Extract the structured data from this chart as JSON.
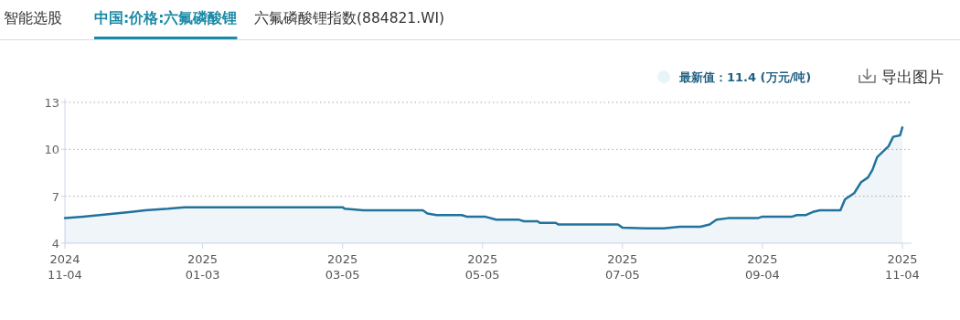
{
  "chart_data": {
    "type": "area",
    "annotations": [
      "智能选股",
      "中国:价格:六氟磷酸锂",
      "六氟磷酸锂指数(884821.WI)",
      "最新值：11.4 (万元/吨)",
      "导出图片"
    ],
    "x": [
      "2024-11-04",
      "2024-11-12",
      "2024-11-26",
      "2024-12-03",
      "2024-12-09",
      "2024-12-19",
      "2024-12-26",
      "2025-03-05",
      "2025-03-06",
      "2025-03-14",
      "2025-04-09",
      "2025-04-11",
      "2025-04-15",
      "2025-04-26",
      "2025-04-28",
      "2025-05-06",
      "2025-05-11",
      "2025-05-21",
      "2025-05-23",
      "2025-05-29",
      "2025-05-30",
      "2025-06-06",
      "2025-06-07",
      "2025-07-03",
      "2025-07-05",
      "2025-07-15",
      "2025-07-23",
      "2025-07-30",
      "2025-08-08",
      "2025-08-12",
      "2025-08-15",
      "2025-08-20",
      "2025-09-02",
      "2025-09-04",
      "2025-09-17",
      "2025-09-19",
      "2025-09-23",
      "2025-09-26",
      "2025-09-29",
      "2025-10-08",
      "2025-10-10",
      "2025-10-14",
      "2025-10-17",
      "2025-10-20",
      "2025-10-22",
      "2025-10-24",
      "2025-10-29",
      "2025-10-31",
      "2025-11-03",
      "2025-11-04"
    ],
    "series": [
      {
        "color": "#21739c",
        "values": [
          5.6,
          5.7,
          5.9,
          6.0,
          6.1,
          6.2,
          6.3,
          6.3,
          6.2,
          6.1,
          6.1,
          5.9,
          5.8,
          5.8,
          5.7,
          5.7,
          5.5,
          5.5,
          5.4,
          5.4,
          5.3,
          5.3,
          5.2,
          5.2,
          5.0,
          4.95,
          4.95,
          5.05,
          5.05,
          5.2,
          5.5,
          5.6,
          5.6,
          5.7,
          5.7,
          5.8,
          5.8,
          6.0,
          6.1,
          6.1,
          6.8,
          7.2,
          7.9,
          8.2,
          8.7,
          9.5,
          10.2,
          10.8,
          10.9,
          11.4
        ]
      }
    ],
    "xlim": [
      "2024-11-04",
      "2025-11-08"
    ],
    "xticks": [
      {
        "value": "2024-11-04",
        "label": "2024\n11-04"
      },
      {
        "value": "2025-01-03",
        "label": "2025\n01-03"
      },
      {
        "value": "2025-03-05",
        "label": "2025\n03-05"
      },
      {
        "value": "2025-05-05",
        "label": "2025\n05-05"
      },
      {
        "value": "2025-07-05",
        "label": "2025\n07-05"
      },
      {
        "value": "2025-09-04",
        "label": "2025\n09-04"
      },
      {
        "value": "2025-11-04",
        "label": "2025\n11-04"
      }
    ],
    "ylim": [
      4,
      13
    ],
    "yticks": [
      4,
      7,
      10,
      13
    ],
    "grid": "y",
    "line_style": "solid",
    "marker": "none"
  }
}
